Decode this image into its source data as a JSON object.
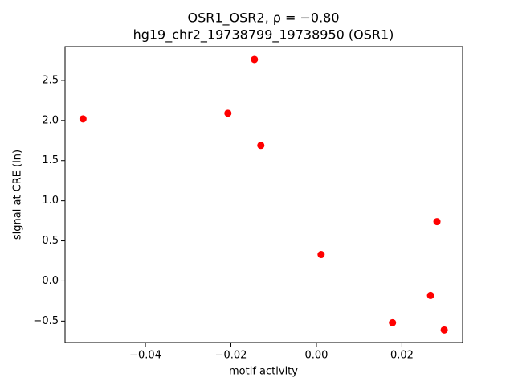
{
  "chart_data": {
    "type": "scatter",
    "title": "OSR1_OSR2, ρ = −0.80",
    "subtitle": "hg19_chr2_19738799_19738950 (OSR1)",
    "x_label": "motif activity",
    "y_label": "signal at CRE (ln)",
    "color": "#ff0000",
    "x": [
      -0.0546,
      -0.0145,
      -0.0207,
      -0.013,
      0.0282,
      0.0011,
      0.0267,
      0.0178,
      0.0299
    ],
    "values": [
      2.02,
      2.76,
      2.09,
      1.69,
      0.74,
      0.33,
      -0.18,
      -0.52,
      -0.61
    ],
    "xlim": [
      -0.0588,
      0.0342
    ],
    "ylim": [
      -0.767,
      2.92
    ],
    "xticks": [
      {
        "value": -0.04,
        "label": "−0.04"
      },
      {
        "value": -0.02,
        "label": "−0.02"
      },
      {
        "value": 0,
        "label": "0.00"
      },
      {
        "value": 0.02,
        "label": "0.02"
      }
    ],
    "yticks": [
      {
        "value": -0.5,
        "label": "−0.5"
      },
      {
        "value": 0,
        "label": "0.0"
      },
      {
        "value": 0.5,
        "label": "0.5"
      },
      {
        "value": 1,
        "label": "1.0"
      },
      {
        "value": 1.5,
        "label": "1.5"
      },
      {
        "value": 2,
        "label": "2.0"
      },
      {
        "value": 2.5,
        "label": "2.5"
      }
    ],
    "grid": false
  }
}
